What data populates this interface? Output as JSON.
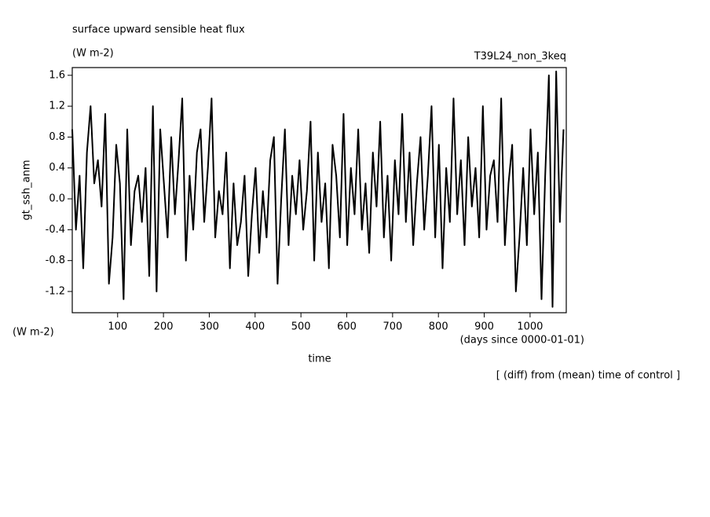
{
  "chart_data": {
    "type": "line",
    "title": "surface upward sensible heat flux",
    "subtitle": "(W m-2)",
    "run_label": "T39L24_non_3keq",
    "ylabel": "gt_ssh_anm",
    "yunit_label": "(W m-2)",
    "xlabel": "time",
    "xunit_label": "(days since 0000-01-01)",
    "note": "[ (diff) from (mean) time of control ]",
    "color": "#000000",
    "xlim": [
      1,
      1079
    ],
    "ylim": [
      -1.475,
      1.7
    ],
    "xticks": [
      100,
      200,
      300,
      400,
      500,
      600,
      700,
      800,
      900,
      1000
    ],
    "yticks": [
      -1.2,
      -0.8,
      -0.4,
      {
        "value": 0,
        "label": "0.0"
      },
      0.4,
      0.8,
      1.2,
      1.6
    ],
    "x": [
      1,
      9,
      17,
      25,
      33,
      41,
      49,
      57,
      65,
      73,
      81,
      89,
      97,
      105,
      113,
      121,
      129,
      137,
      145,
      153,
      161,
      169,
      177,
      185,
      193,
      201,
      209,
      217,
      225,
      233,
      241,
      249,
      257,
      265,
      273,
      281,
      289,
      297,
      305,
      313,
      321,
      329,
      337,
      345,
      353,
      361,
      369,
      377,
      385,
      393,
      401,
      409,
      417,
      425,
      433,
      441,
      449,
      457,
      465,
      473,
      481,
      489,
      497,
      505,
      513,
      521,
      529,
      537,
      545,
      553,
      561,
      569,
      577,
      585,
      593,
      601,
      609,
      617,
      625,
      633,
      641,
      649,
      657,
      665,
      673,
      681,
      689,
      697,
      705,
      713,
      721,
      729,
      737,
      745,
      753,
      761,
      769,
      777,
      785,
      793,
      801,
      809,
      817,
      825,
      833,
      841,
      849,
      857,
      865,
      873,
      881,
      889,
      897,
      905,
      913,
      921,
      929,
      937,
      945,
      953,
      961,
      969,
      977,
      985,
      993,
      1001,
      1009,
      1017,
      1025,
      1033,
      1041,
      1049,
      1057,
      1065,
      1073
    ],
    "values": [
      0.9,
      -0.4,
      0.3,
      -0.9,
      0.6,
      1.2,
      0.2,
      0.5,
      -0.1,
      1.1,
      -1.1,
      -0.5,
      0.7,
      0.2,
      -1.3,
      0.9,
      -0.6,
      0.1,
      0.3,
      -0.3,
      0.4,
      -1.0,
      1.2,
      -1.2,
      0.9,
      0.2,
      -0.5,
      0.8,
      -0.2,
      0.5,
      1.3,
      -0.8,
      0.3,
      -0.4,
      0.6,
      0.9,
      -0.3,
      0.4,
      1.3,
      -0.5,
      0.1,
      -0.2,
      0.6,
      -0.9,
      0.2,
      -0.6,
      -0.3,
      0.3,
      -1.0,
      -0.2,
      0.4,
      -0.7,
      0.1,
      -0.5,
      0.5,
      0.8,
      -1.1,
      0.0,
      0.9,
      -0.6,
      0.3,
      -0.2,
      0.5,
      -0.4,
      0.1,
      1.0,
      -0.8,
      0.6,
      -0.3,
      0.2,
      -0.9,
      0.7,
      0.3,
      -0.5,
      1.1,
      -0.6,
      0.4,
      -0.2,
      0.9,
      -0.4,
      0.2,
      -0.7,
      0.6,
      -0.1,
      1.0,
      -0.5,
      0.3,
      -0.8,
      0.5,
      -0.2,
      1.1,
      -0.3,
      0.6,
      -0.6,
      0.2,
      0.8,
      -0.4,
      0.3,
      1.2,
      -0.5,
      0.7,
      -0.9,
      0.4,
      -0.3,
      1.3,
      -0.2,
      0.5,
      -0.6,
      0.8,
      -0.1,
      0.4,
      -0.5,
      1.2,
      -0.4,
      0.3,
      0.5,
      -0.3,
      1.3,
      -0.6,
      0.2,
      0.7,
      -1.2,
      -0.5,
      0.4,
      -0.6,
      0.9,
      -0.2,
      0.6,
      -1.3,
      0.3,
      1.6,
      -1.4,
      1.65,
      -0.3,
      0.9
    ]
  }
}
